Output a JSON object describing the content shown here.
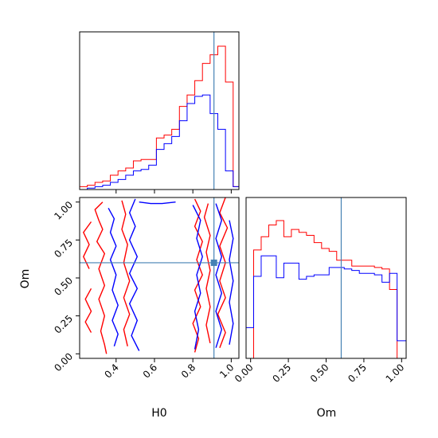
{
  "chart_data": {
    "type": "corner",
    "parameters": [
      "H0",
      "Om"
    ],
    "truth": {
      "H0": 0.91,
      "Om": 0.6
    },
    "truth_color": "#4682b4",
    "series": [
      {
        "color": "#ff0000"
      },
      {
        "color": "#0000ff"
      }
    ],
    "panels": [
      {
        "id": "h0-marginal",
        "type": "histogram",
        "xlim": [
          0.21,
          1.04
        ],
        "bin_edges": [
          0.21,
          0.25,
          0.29,
          0.33,
          0.37,
          0.41,
          0.45,
          0.49,
          0.53,
          0.57,
          0.61,
          0.65,
          0.69,
          0.73,
          0.77,
          0.81,
          0.85,
          0.89,
          0.93,
          0.97,
          1.01,
          1.04
        ],
        "series_values": [
          [
            0.02,
            0.03,
            0.05,
            0.06,
            0.1,
            0.13,
            0.15,
            0.2,
            0.21,
            0.21,
            0.36,
            0.38,
            0.42,
            0.58,
            0.66,
            0.76,
            0.88,
            0.94,
            1.0,
            0.75,
            0.02
          ],
          [
            0.0,
            0.01,
            0.02,
            0.03,
            0.05,
            0.07,
            0.1,
            0.13,
            0.14,
            0.17,
            0.28,
            0.32,
            0.37,
            0.48,
            0.6,
            0.65,
            0.66,
            0.53,
            0.42,
            0.13,
            0.02
          ]
        ],
        "xticks": [
          0.4,
          0.6,
          0.8,
          1.0
        ]
      },
      {
        "id": "om-marginal",
        "type": "histogram",
        "xlim": [
          -0.03,
          1.03
        ],
        "bin_edges": [
          -0.03,
          0.02,
          0.07,
          0.12,
          0.17,
          0.22,
          0.27,
          0.32,
          0.37,
          0.42,
          0.47,
          0.52,
          0.57,
          0.62,
          0.67,
          0.72,
          0.77,
          0.82,
          0.87,
          0.92,
          0.97,
          1.03
        ],
        "series_values": [
          [
            0.0,
            0.74,
            0.83,
            0.91,
            0.94,
            0.83,
            0.88,
            0.86,
            0.84,
            0.79,
            0.75,
            0.73,
            0.67,
            0.67,
            0.63,
            0.63,
            0.63,
            0.62,
            0.61,
            0.47,
            0.0
          ],
          [
            0.21,
            0.56,
            0.7,
            0.7,
            0.55,
            0.65,
            0.65,
            0.54,
            0.56,
            0.57,
            0.57,
            0.62,
            0.62,
            0.61,
            0.6,
            0.58,
            0.58,
            0.57,
            0.52,
            0.58,
            0.12
          ]
        ],
        "xlabel": "Om",
        "xtick_labels": [
          "0.00",
          "0.25",
          "0.50",
          "0.75",
          "1.00"
        ],
        "xticks": [
          0.0,
          0.25,
          0.5,
          0.75,
          1.0
        ]
      },
      {
        "id": "h0-om-contour",
        "type": "contour",
        "xlim": [
          0.21,
          1.04
        ],
        "ylim": [
          -0.03,
          1.03
        ],
        "xlabel": "H0",
        "ylabel": "Om",
        "xtick_labels": [
          "0.4",
          "0.6",
          "0.8",
          "1.0"
        ],
        "xticks": [
          0.4,
          0.6,
          0.8,
          1.0
        ],
        "ytick_labels": [
          "0.00",
          "0.25",
          "0.50",
          "0.75",
          "1.00"
        ],
        "yticks": [
          0.0,
          0.25,
          0.5,
          0.75,
          1.0
        ],
        "contours": [
          {
            "series": 0,
            "points": [
              [
                0.33,
                1.0
              ],
              [
                0.29,
                0.95
              ],
              [
                0.31,
                0.88
              ],
              [
                0.33,
                0.82
              ],
              [
                0.3,
                0.74
              ],
              [
                0.34,
                0.66
              ],
              [
                0.31,
                0.56
              ],
              [
                0.34,
                0.45
              ],
              [
                0.31,
                0.36
              ],
              [
                0.34,
                0.25
              ],
              [
                0.32,
                0.15
              ],
              [
                0.34,
                0.06
              ],
              [
                0.35,
                0.0
              ]
            ]
          },
          {
            "series": 0,
            "points": [
              [
                0.27,
                0.87
              ],
              [
                0.23,
                0.8
              ],
              [
                0.26,
                0.72
              ],
              [
                0.23,
                0.64
              ],
              [
                0.26,
                0.56
              ]
            ]
          },
          {
            "series": 0,
            "points": [
              [
                0.27,
                0.43
              ],
              [
                0.24,
                0.36
              ],
              [
                0.27,
                0.28
              ],
              [
                0.24,
                0.21
              ],
              [
                0.27,
                0.14
              ]
            ]
          },
          {
            "series": 0,
            "points": [
              [
                0.43,
                1.01
              ],
              [
                0.45,
                0.92
              ],
              [
                0.43,
                0.82
              ],
              [
                0.46,
                0.72
              ],
              [
                0.44,
                0.6
              ],
              [
                0.47,
                0.48
              ],
              [
                0.44,
                0.37
              ],
              [
                0.47,
                0.26
              ],
              [
                0.44,
                0.16
              ],
              [
                0.46,
                0.05
              ]
            ]
          },
          {
            "series": 0,
            "points": [
              [
                0.81,
                1.02
              ],
              [
                0.84,
                0.94
              ],
              [
                0.81,
                0.84
              ],
              [
                0.85,
                0.74
              ],
              [
                0.82,
                0.62
              ],
              [
                0.85,
                0.52
              ],
              [
                0.81,
                0.42
              ],
              [
                0.84,
                0.31
              ],
              [
                0.8,
                0.2
              ],
              [
                0.83,
                0.1
              ],
              [
                0.81,
                0.01
              ]
            ]
          },
          {
            "series": 0,
            "points": [
              [
                0.97,
                1.03
              ],
              [
                0.94,
                0.93
              ],
              [
                0.98,
                0.83
              ],
              [
                0.94,
                0.71
              ],
              [
                0.97,
                0.6
              ],
              [
                0.94,
                0.48
              ],
              [
                0.97,
                0.37
              ],
              [
                0.93,
                0.26
              ],
              [
                0.97,
                0.14
              ],
              [
                0.94,
                0.04
              ]
            ]
          },
          {
            "series": 0,
            "points": [
              [
                0.88,
                0.99
              ],
              [
                0.86,
                0.9
              ],
              [
                0.89,
                0.78
              ],
              [
                0.87,
                0.67
              ],
              [
                0.89,
                0.55
              ],
              [
                0.87,
                0.43
              ],
              [
                0.89,
                0.31
              ],
              [
                0.87,
                0.19
              ],
              [
                0.89,
                0.07
              ]
            ]
          },
          {
            "series": 1,
            "points": [
              [
                0.36,
                0.96
              ],
              [
                0.39,
                0.89
              ],
              [
                0.37,
                0.8
              ],
              [
                0.4,
                0.71
              ],
              [
                0.37,
                0.62
              ],
              [
                0.4,
                0.52
              ],
              [
                0.38,
                0.42
              ],
              [
                0.41,
                0.32
              ],
              [
                0.38,
                0.22
              ],
              [
                0.41,
                0.13
              ],
              [
                0.39,
                0.05
              ]
            ]
          },
          {
            "series": 1,
            "points": [
              [
                0.5,
                1.02
              ],
              [
                0.47,
                0.93
              ],
              [
                0.5,
                0.84
              ],
              [
                0.47,
                0.75
              ],
              [
                0.51,
                0.64
              ],
              [
                0.47,
                0.53
              ],
              [
                0.51,
                0.43
              ],
              [
                0.47,
                0.33
              ],
              [
                0.51,
                0.22
              ],
              [
                0.48,
                0.12
              ],
              [
                0.52,
                0.02
              ]
            ]
          },
          {
            "series": 1,
            "points": [
              [
                0.52,
                1.0
              ],
              [
                0.58,
                0.99
              ],
              [
                0.64,
                0.99
              ],
              [
                0.71,
                1.0
              ]
            ]
          },
          {
            "series": 1,
            "points": [
              [
                0.8,
                0.98
              ],
              [
                0.84,
                0.88
              ],
              [
                0.82,
                0.76
              ],
              [
                0.85,
                0.64
              ],
              [
                0.82,
                0.52
              ],
              [
                0.84,
                0.4
              ],
              [
                0.81,
                0.28
              ],
              [
                0.83,
                0.16
              ],
              [
                0.81,
                0.03
              ]
            ]
          },
          {
            "series": 1,
            "points": [
              [
                0.92,
                0.99
              ],
              [
                0.95,
                0.88
              ],
              [
                0.92,
                0.76
              ],
              [
                0.95,
                0.64
              ],
              [
                0.92,
                0.52
              ],
              [
                0.95,
                0.4
              ],
              [
                0.92,
                0.28
              ],
              [
                0.95,
                0.16
              ],
              [
                0.92,
                0.04
              ]
            ]
          },
          {
            "series": 1,
            "points": [
              [
                0.99,
                0.88
              ],
              [
                1.01,
                0.76
              ],
              [
                0.99,
                0.62
              ],
              [
                1.01,
                0.48
              ],
              [
                0.99,
                0.34
              ],
              [
                1.01,
                0.2
              ],
              [
                0.99,
                0.06
              ]
            ]
          }
        ]
      }
    ]
  }
}
